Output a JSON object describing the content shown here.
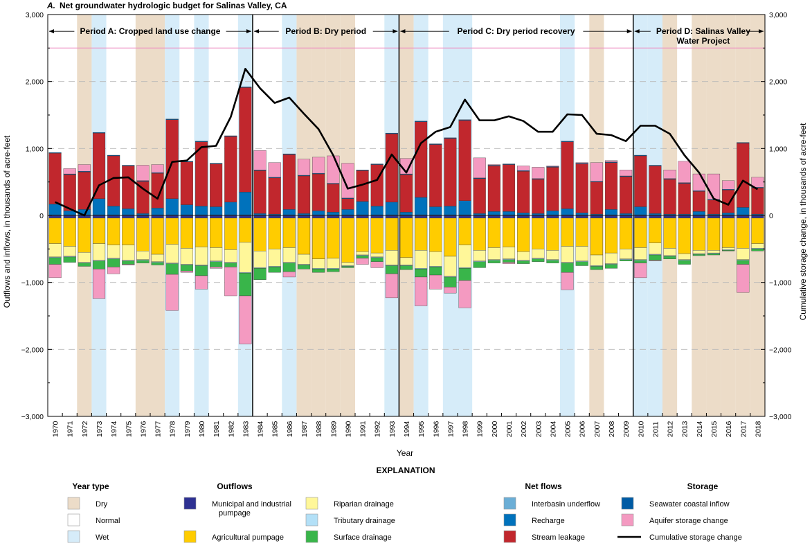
{
  "chart_data": {
    "type": "bar",
    "title_letter": "A.",
    "title": "Net groundwater hydrologic budget for Salinas Valley, CA",
    "xlabel": "Year",
    "ylabel_left": "Outflows and inflows, in thousands of acre-feet",
    "ylabel_right": "Cumulative storage change, in thousands of acre-feet",
    "ylim": [
      -3000,
      3000
    ],
    "yticks": [
      -3000,
      -2000,
      -1000,
      0,
      1000,
      2000,
      3000
    ],
    "ytick_labels": [
      "−3,000",
      "−2,000",
      "−1,000",
      "0",
      "1,000",
      "2,000",
      "3,000"
    ],
    "reference_line_value": 2500,
    "categories": [
      "1970",
      "1971",
      "1972",
      "1973",
      "1974",
      "1975",
      "1976",
      "1977",
      "1978",
      "1979",
      "1980",
      "1981",
      "1982",
      "1983",
      "1984",
      "1985",
      "1986",
      "1987",
      "1988",
      "1989",
      "1990",
      "1991",
      "1992",
      "1993",
      "1994",
      "1995",
      "1996",
      "1997",
      "1998",
      "1999",
      "2000",
      "2001",
      "2002",
      "2003",
      "2004",
      "2005",
      "2006",
      "2007",
      "2008",
      "2009",
      "2010",
      "2011",
      "2012",
      "2013",
      "2014",
      "2015",
      "2016",
      "2017",
      "2018"
    ],
    "year_types": [
      "normal",
      "normal",
      "dry",
      "wet",
      "normal",
      "normal",
      "dry",
      "dry",
      "wet",
      "normal",
      "wet",
      "normal",
      "normal",
      "wet",
      "normal",
      "normal",
      "wet",
      "dry",
      "dry",
      "dry",
      "dry",
      "normal",
      "normal",
      "wet",
      "dry",
      "wet",
      "normal",
      "wet",
      "wet",
      "normal",
      "normal",
      "normal",
      "normal",
      "normal",
      "normal",
      "wet",
      "normal",
      "dry",
      "normal",
      "normal",
      "wet",
      "wet",
      "dry",
      "normal",
      "dry",
      "dry",
      "dry",
      "dry",
      "dry"
    ],
    "periods": [
      {
        "label": "Period A: Cropped land use change",
        "start": "1970",
        "end": "1983"
      },
      {
        "label": "Period B: Dry period",
        "start": "1984",
        "end": "1993"
      },
      {
        "label": "Period C: Dry period recovery",
        "start": "1994",
        "end": "2009"
      },
      {
        "label": "Period D: Salinas Valley Water Project",
        "start": "2010",
        "end": "2018"
      }
    ],
    "series": [
      {
        "name": "Municipal and industrial pumpage",
        "group": "outflows",
        "color": "#2e3192",
        "values": [
          -40,
          -40,
          -40,
          -40,
          -40,
          -40,
          -40,
          -40,
          -40,
          -40,
          -40,
          -40,
          -40,
          -40,
          -40,
          -40,
          -40,
          -40,
          -40,
          -40,
          -40,
          -40,
          -40,
          -40,
          -40,
          -40,
          -40,
          -40,
          -40,
          -40,
          -40,
          -40,
          -40,
          -40,
          -40,
          -40,
          -40,
          -40,
          -40,
          -40,
          -40,
          -40,
          -40,
          -40,
          -40,
          -40,
          -40,
          -40,
          -40
        ]
      },
      {
        "name": "Agricultural pumpage",
        "group": "outflows",
        "color": "#ffcc00",
        "values": [
          -380,
          -420,
          -510,
          -380,
          -400,
          -400,
          -490,
          -540,
          -390,
          -450,
          -430,
          -440,
          -470,
          -360,
          -490,
          -460,
          -440,
          -540,
          -610,
          -600,
          -660,
          -500,
          -520,
          -480,
          -590,
          -480,
          -500,
          -570,
          -400,
          -480,
          -440,
          -430,
          -500,
          -460,
          -480,
          -420,
          -420,
          -550,
          -520,
          -460,
          -440,
          -370,
          -450,
          -530,
          -480,
          -480,
          -440,
          -450,
          -380
        ]
      },
      {
        "name": "Riparian drainage",
        "group": "outflows",
        "color": "#fff799",
        "values": [
          -200,
          -150,
          -150,
          -250,
          -200,
          -230,
          -130,
          -110,
          -280,
          -240,
          -270,
          -200,
          -190,
          -450,
          -250,
          -260,
          -220,
          -150,
          -140,
          -150,
          -50,
          -50,
          -60,
          -220,
          -110,
          -270,
          -220,
          -300,
          -340,
          -160,
          -180,
          -180,
          -130,
          -140,
          -140,
          -240,
          -220,
          -160,
          -160,
          -150,
          -180,
          -170,
          -110,
          -90,
          -50,
          -40,
          -30,
          -170,
          -70
        ]
      },
      {
        "name": "Tributary drainage",
        "group": "outflows",
        "color": "#b3e0f7",
        "values": [
          -10,
          -10,
          -10,
          -10,
          -10,
          -10,
          -10,
          -10,
          -10,
          -10,
          -10,
          -10,
          -10,
          -10,
          -10,
          -10,
          -10,
          -10,
          -10,
          -10,
          -10,
          -10,
          -10,
          -10,
          -10,
          -10,
          -10,
          -10,
          -10,
          -10,
          -10,
          -10,
          -10,
          -10,
          -10,
          -10,
          -10,
          -10,
          -10,
          -10,
          -10,
          -10,
          -10,
          -10,
          -10,
          -10,
          -10,
          -10,
          -10
        ]
      },
      {
        "name": "Surface drainage",
        "group": "outflows",
        "color": "#39b54a",
        "values": [
          -100,
          -80,
          -50,
          -120,
          -120,
          -50,
          -40,
          -40,
          -160,
          -90,
          -150,
          -80,
          -60,
          -340,
          -170,
          -80,
          -130,
          -60,
          -50,
          -40,
          -20,
          -40,
          -60,
          -120,
          -60,
          -120,
          -120,
          -150,
          -180,
          -90,
          -40,
          -40,
          -40,
          -40,
          -40,
          -140,
          -60,
          -50,
          -60,
          -20,
          -40,
          -80,
          -40,
          -60,
          -20,
          -20,
          -10,
          -60,
          -30
        ]
      },
      {
        "name": "Interbasin underflow",
        "group": "net flows",
        "color": "#6baed6",
        "values": [
          10,
          10,
          10,
          10,
          10,
          10,
          10,
          10,
          10,
          10,
          10,
          10,
          10,
          10,
          10,
          10,
          10,
          10,
          10,
          10,
          10,
          10,
          10,
          10,
          10,
          10,
          10,
          10,
          10,
          10,
          10,
          10,
          10,
          10,
          10,
          10,
          10,
          10,
          10,
          10,
          10,
          10,
          10,
          10,
          10,
          10,
          10,
          10,
          10
        ]
      },
      {
        "name": "Recharge",
        "group": "net flows",
        "color": "#0072bc",
        "values": [
          160,
          60,
          80,
          240,
          130,
          90,
          20,
          100,
          240,
          150,
          130,
          120,
          190,
          340,
          20,
          10,
          80,
          20,
          60,
          40,
          80,
          200,
          130,
          190,
          40,
          260,
          120,
          130,
          210,
          20,
          50,
          50,
          30,
          20,
          60,
          90,
          30,
          10,
          80,
          20,
          120,
          20,
          10,
          10,
          50,
          10,
          30,
          110,
          10
        ]
      },
      {
        "name": "Stream leakage",
        "group": "net flows",
        "color": "#c1272d",
        "values": [
          760,
          540,
          560,
          980,
          750,
          640,
          480,
          520,
          1180,
          640,
          960,
          640,
          980,
          1560,
          640,
          540,
          820,
          560,
          550,
          420,
          160,
          460,
          620,
          1020,
          560,
          1130,
          930,
          1010,
          1200,
          520,
          680,
          700,
          620,
          510,
          650,
          1000,
          730,
          480,
          700,
          550,
          760,
          710,
          520,
          460,
          300,
          210,
          340,
          960,
          390
        ]
      },
      {
        "name": "Seawater coastal inflow",
        "group": "storage",
        "color": "#005ba4",
        "values": [
          10,
          10,
          10,
          10,
          10,
          10,
          10,
          10,
          10,
          10,
          10,
          10,
          10,
          10,
          10,
          10,
          10,
          10,
          10,
          10,
          10,
          10,
          10,
          10,
          10,
          10,
          10,
          10,
          10,
          10,
          10,
          10,
          10,
          10,
          10,
          10,
          10,
          10,
          10,
          10,
          10,
          10,
          10,
          10,
          10,
          10,
          10,
          10,
          10
        ]
      },
      {
        "name": "Aquifer storage change",
        "group": "storage",
        "color": "#f49ac1",
        "values": [
          -200,
          80,
          100,
          -440,
          -100,
          -10,
          230,
          120,
          -540,
          -20,
          -200,
          -20,
          -430,
          -720,
          290,
          220,
          -80,
          240,
          240,
          410,
          520,
          -90,
          -90,
          -360,
          230,
          -430,
          -210,
          -90,
          -410,
          300,
          10,
          -20,
          70,
          170,
          10,
          -260,
          10,
          280,
          20,
          90,
          -220,
          -10,
          130,
          320,
          250,
          380,
          130,
          -420,
          150
        ]
      },
      {
        "name": "Cumulative storage change",
        "group": "storage",
        "kind": "line",
        "color": "#000000",
        "values": [
          200,
          100,
          0,
          450,
          560,
          570,
          400,
          250,
          800,
          820,
          1020,
          1040,
          1470,
          2190,
          1900,
          1680,
          1760,
          1520,
          1290,
          900,
          400,
          460,
          530,
          910,
          640,
          1080,
          1250,
          1320,
          1730,
          1420,
          1420,
          1480,
          1410,
          1250,
          1250,
          1510,
          1500,
          1220,
          1200,
          1110,
          1340,
          1340,
          1220,
          900,
          640,
          250,
          160,
          520,
          390
        ]
      }
    ],
    "legend": {
      "heading": "EXPLANATION",
      "groups": [
        {
          "title": "Year type",
          "items": [
            {
              "label": "Dry",
              "color": "#ecdcc8"
            },
            {
              "label": "Normal",
              "color": "#ffffff"
            },
            {
              "label": "Wet",
              "color": "#d6ecf9"
            }
          ]
        },
        {
          "title": "Outflows",
          "items": [
            {
              "label": "Municipal and industrial pumpage",
              "color": "#2e3192"
            },
            {
              "label": "Agricultural pumpage",
              "color": "#ffcc00"
            },
            {
              "label": "Riparian drainage",
              "color": "#fff799"
            },
            {
              "label": "Tributary drainage",
              "color": "#b3e0f7"
            },
            {
              "label": "Surface drainage",
              "color": "#39b54a"
            }
          ]
        },
        {
          "title": "Net flows",
          "items": [
            {
              "label": "Interbasin underflow",
              "color": "#6baed6"
            },
            {
              "label": "Recharge",
              "color": "#0072bc"
            },
            {
              "label": "Stream leakage",
              "color": "#c1272d"
            }
          ]
        },
        {
          "title": "Storage",
          "items": [
            {
              "label": "Seawater coastal inflow",
              "color": "#005ba4"
            },
            {
              "label": "Aquifer storage change",
              "color": "#f49ac1"
            },
            {
              "label": "Cumulative storage change",
              "color": "#000000",
              "kind": "line"
            }
          ]
        }
      ]
    },
    "grid": true
  }
}
